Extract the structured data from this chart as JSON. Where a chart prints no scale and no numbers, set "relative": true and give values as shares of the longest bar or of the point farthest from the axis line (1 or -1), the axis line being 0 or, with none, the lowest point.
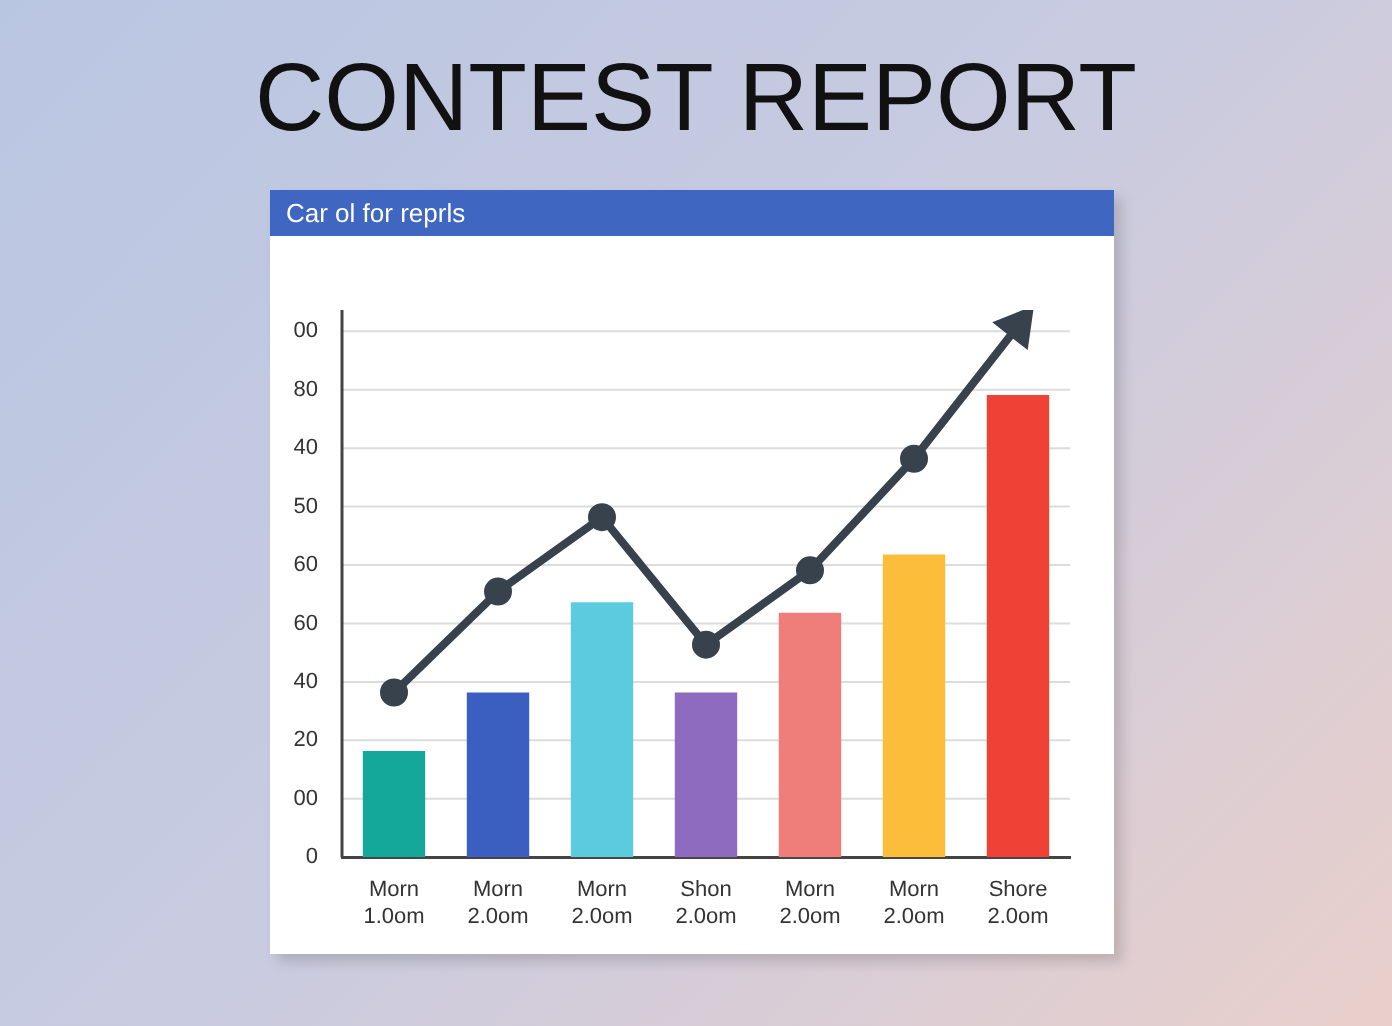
{
  "chart_data": {
    "type": "bar",
    "title": "CONTEST REPORT",
    "subtitle": "Car ol for reprls",
    "relative": true,
    "categories": [
      "Morn\n1.0om",
      "Morn\n2.0om",
      "Morn\n2.0om",
      "Shon\n2.0om",
      "Morn\n2.0om",
      "Morn\n2.0om",
      "Shore\n2.0om"
    ],
    "series": [
      {
        "colors": [
          "#14a89a",
          "#3a5fc0",
          "#5ccbe0",
          "#8e6bbf",
          "#ef7d7a",
          "#fbbd3a",
          "#ef4136"
        ],
        "values": [
          0.2,
          0.31,
          0.48,
          0.31,
          0.46,
          0.57,
          0.87
        ]
      },
      {
        "type": "line",
        "color": "#37424d",
        "marker": "circle",
        "values": [
          0.31,
          0.5,
          0.64,
          0.4,
          0.54,
          0.75,
          1
        ]
      }
    ],
    "annotations": [
      "0",
      "00",
      "20",
      "40",
      "60",
      "60",
      "50",
      "40",
      "80",
      "00"
    ],
    "grid": "y",
    "legend": false
  }
}
